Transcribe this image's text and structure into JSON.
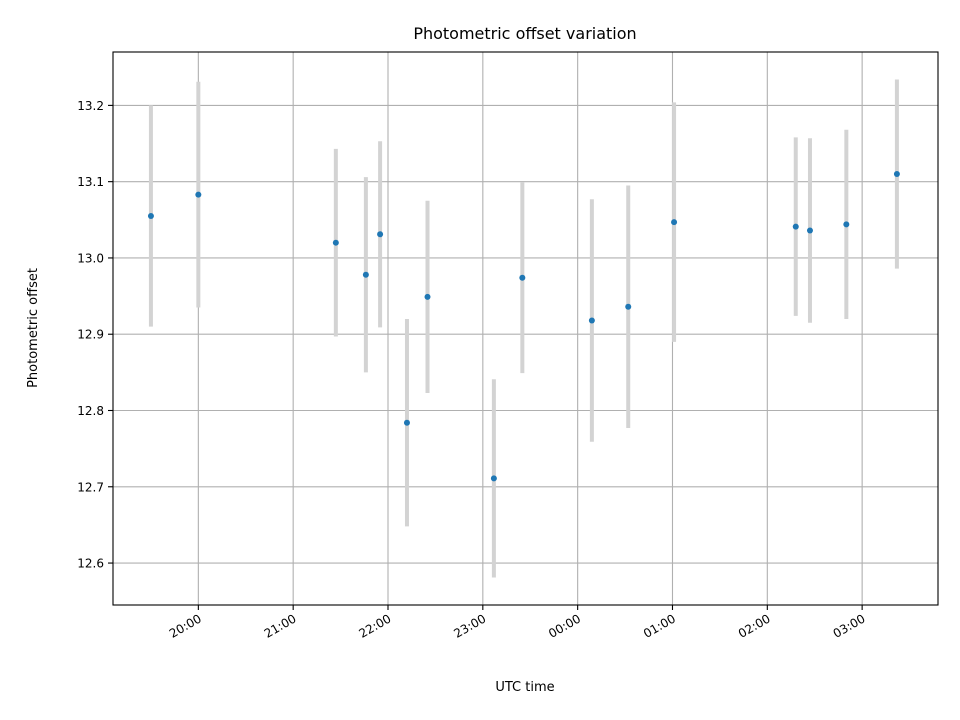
{
  "chart_data": {
    "type": "scatter",
    "title": "Photometric offset variation",
    "xlabel": "UTC time",
    "ylabel": "Photometric offset",
    "grid": true,
    "xaxis": {
      "tick_labels": [
        "20:00",
        "21:00",
        "22:00",
        "23:00",
        "00:00",
        "01:00",
        "02:00",
        "03:00"
      ],
      "range": [
        "19:06",
        "03:48"
      ]
    },
    "yaxis": {
      "tick_labels": [
        "12.6",
        "12.7",
        "12.8",
        "12.9",
        "13.0",
        "13.1",
        "13.2"
      ],
      "ticks": [
        12.6,
        12.7,
        12.8,
        12.9,
        13.0,
        13.1,
        13.2
      ],
      "range": [
        12.545,
        13.27
      ]
    },
    "points": [
      {
        "time": "19:30",
        "y": 13.055,
        "err": 0.145
      },
      {
        "time": "20:00",
        "y": 13.083,
        "err": 0.148
      },
      {
        "time": "21:27",
        "y": 13.02,
        "err": 0.123
      },
      {
        "time": "21:46",
        "y": 12.978,
        "err": 0.128
      },
      {
        "time": "21:55",
        "y": 13.031,
        "err": 0.122
      },
      {
        "time": "22:12",
        "y": 12.784,
        "err": 0.136
      },
      {
        "time": "22:25",
        "y": 12.949,
        "err": 0.126
      },
      {
        "time": "23:07",
        "y": 12.711,
        "err": 0.13
      },
      {
        "time": "23:25",
        "y": 12.974,
        "err": 0.125
      },
      {
        "time": "00:09",
        "y": 12.918,
        "err": 0.159
      },
      {
        "time": "00:32",
        "y": 12.936,
        "err": 0.159
      },
      {
        "time": "01:01",
        "y": 13.047,
        "err": 0.157
      },
      {
        "time": "02:18",
        "y": 13.041,
        "err": 0.117
      },
      {
        "time": "02:27",
        "y": 13.036,
        "err": 0.121
      },
      {
        "time": "02:50",
        "y": 13.044,
        "err": 0.124
      },
      {
        "time": "03:22",
        "y": 13.11,
        "err": 0.124
      }
    ],
    "colors": {
      "marker": "#1f77b4",
      "errorbar": "#d3d3d3",
      "grid": "#b0b0b0",
      "axes": "#000000"
    }
  }
}
